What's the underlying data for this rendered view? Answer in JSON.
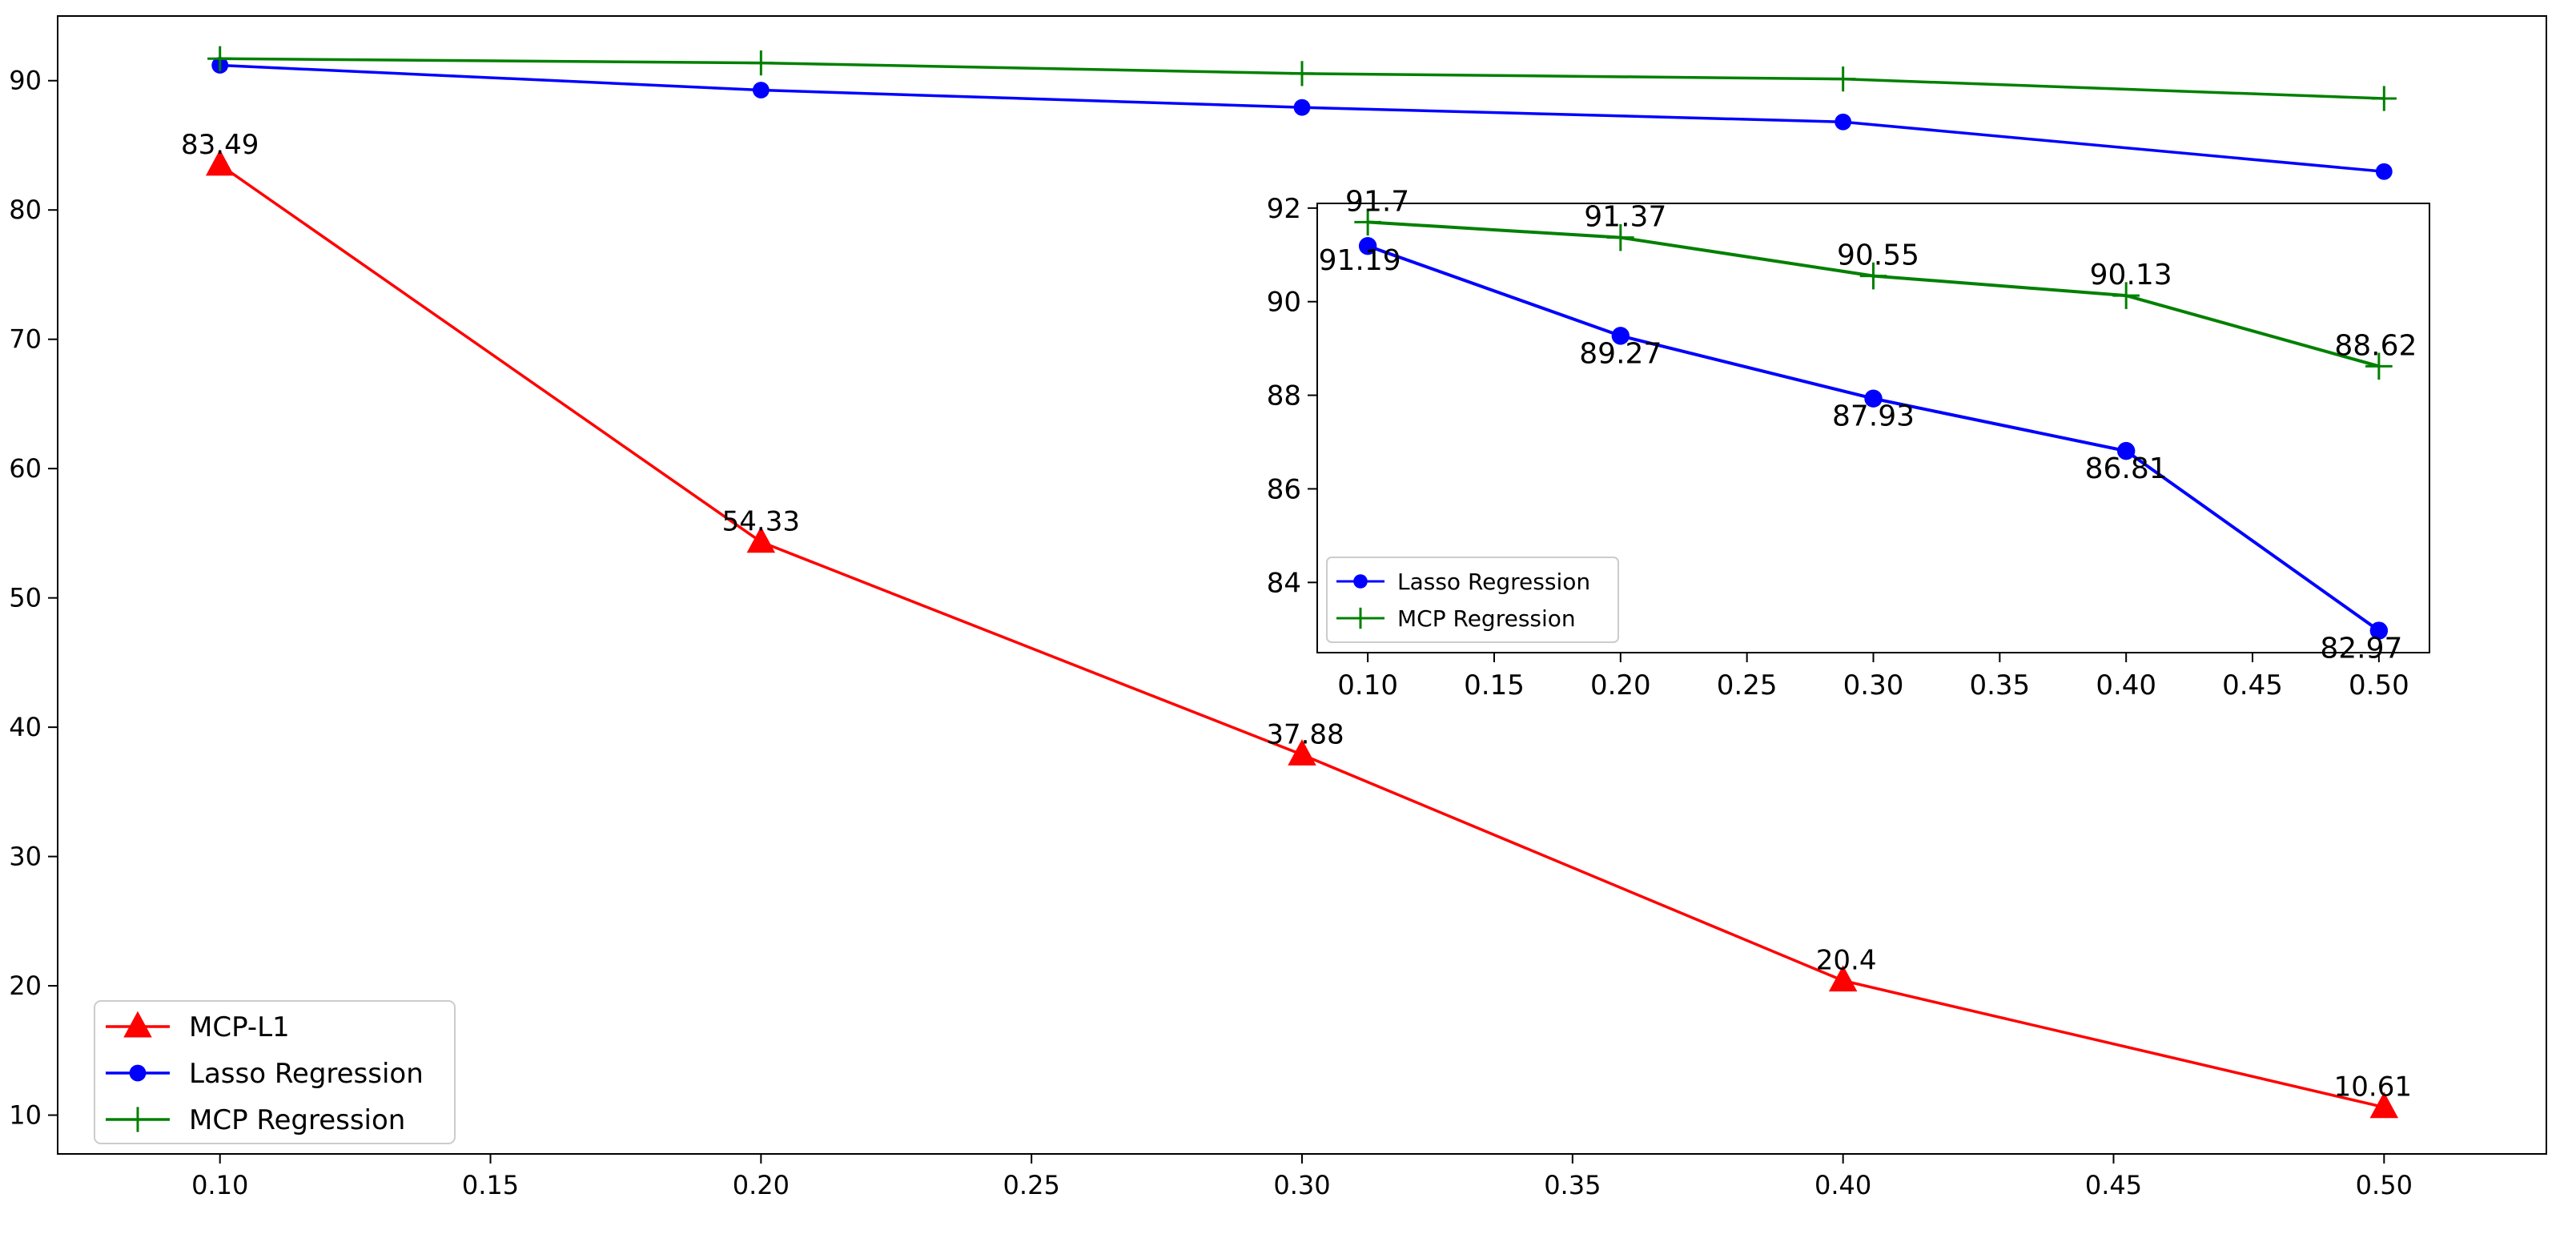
{
  "colors": {
    "mcp_l1": "#ff0000",
    "lasso": "#0000ff",
    "mcp_reg": "#008000",
    "axis": "#000000",
    "background": "#ffffff"
  },
  "chart_data": [
    {
      "type": "line",
      "title": "",
      "xlabel": "",
      "ylabel": "",
      "x": [
        0.1,
        0.2,
        0.3,
        0.4,
        0.5
      ],
      "xlim": [
        0.07,
        0.53
      ],
      "ylim": [
        7,
        95
      ],
      "xticks": [
        "0.10",
        "0.15",
        "0.20",
        "0.25",
        "0.30",
        "0.35",
        "0.40",
        "0.45",
        "0.50"
      ],
      "yticks": [
        "10",
        "20",
        "30",
        "40",
        "50",
        "60",
        "70",
        "80",
        "90"
      ],
      "legend_position": "lower-left",
      "series": [
        {
          "name": "MCP-L1",
          "marker": "triangle",
          "values": [
            83.49,
            54.33,
            37.88,
            20.4,
            10.61
          ],
          "labels": [
            "83.49",
            "54.33",
            "37.88",
            "20.4",
            "10.61"
          ]
        },
        {
          "name": "Lasso Regression",
          "marker": "dot",
          "values": [
            91.19,
            89.27,
            87.93,
            86.81,
            82.97
          ]
        },
        {
          "name": "MCP Regression",
          "marker": "plus",
          "values": [
            91.7,
            91.37,
            90.55,
            90.13,
            88.62
          ]
        }
      ]
    },
    {
      "type": "line",
      "title": "",
      "inset": true,
      "xlabel": "",
      "ylabel": "",
      "x": [
        0.1,
        0.2,
        0.3,
        0.4,
        0.5
      ],
      "xlim": [
        0.08,
        0.52
      ],
      "ylim": [
        82.5,
        92.1
      ],
      "xticks": [
        "0.10",
        "0.15",
        "0.20",
        "0.25",
        "0.30",
        "0.35",
        "0.40",
        "0.45",
        "0.50"
      ],
      "yticks": [
        "84",
        "86",
        "88",
        "90",
        "92"
      ],
      "legend_position": "lower-left",
      "series": [
        {
          "name": "Lasso Regression",
          "marker": "dot",
          "values": [
            91.19,
            89.27,
            87.93,
            86.81,
            82.97
          ],
          "labels": [
            "91.19",
            "89.27",
            "87.93",
            "86.81",
            "82.97"
          ]
        },
        {
          "name": "MCP Regression",
          "marker": "plus",
          "values": [
            91.7,
            91.37,
            90.55,
            90.13,
            88.62
          ],
          "labels": [
            "91.7",
            "91.37",
            "90.55",
            "90.13",
            "88.62"
          ]
        }
      ]
    }
  ]
}
